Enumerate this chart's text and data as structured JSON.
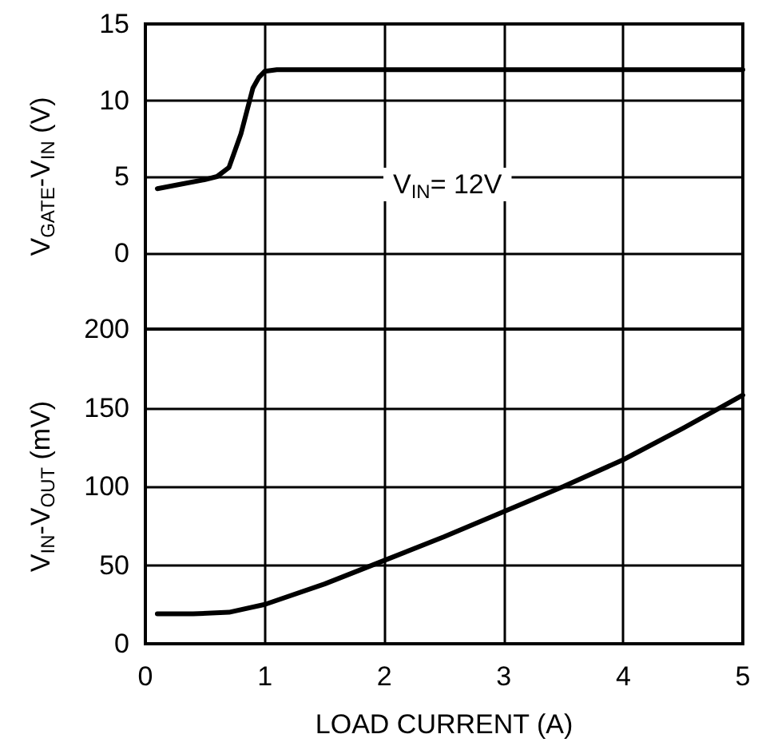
{
  "chart_data": [
    {
      "type": "line",
      "ylabel": "V$_{GATE}$-V$_{IN}$ (V)",
      "annotations": [
        "V$_{IN}$= 12V"
      ],
      "x": [
        0.1,
        0.3,
        0.5,
        0.6,
        0.7,
        0.8,
        0.9,
        0.95,
        1.0,
        1.1,
        1.5,
        2,
        3,
        4,
        5
      ],
      "series": [
        {
          "color": "#000000",
          "values": [
            4.2,
            4.5,
            4.8,
            5.0,
            5.6,
            7.8,
            10.8,
            11.5,
            11.9,
            12.0,
            12.0,
            12.0,
            12.0,
            12.0,
            12.0
          ]
        }
      ],
      "xlim": [
        0,
        5
      ],
      "xticks": [
        0,
        1,
        2,
        3,
        4,
        5
      ],
      "ylim": [
        -5,
        15
      ],
      "yticks": [
        0,
        5,
        10,
        15
      ],
      "tick_labels": "y",
      "grid": true,
      "marker": "none",
      "line_style": "solid"
    },
    {
      "type": "line",
      "xlabel": "LOAD CURRENT (A)",
      "ylabel": "V$_{IN}$-V$_{OUT}$ (mV)",
      "x": [
        0.1,
        0.4,
        0.7,
        1.0,
        1.5,
        2,
        2.5,
        3,
        3.5,
        4,
        4.5,
        5
      ],
      "series": [
        {
          "color": "#000000",
          "values": [
            19,
            19,
            20,
            25,
            38,
            53,
            68,
            84,
            100,
            117,
            137,
            158
          ]
        }
      ],
      "xlim": [
        0,
        5
      ],
      "xticks": [
        0,
        1,
        2,
        3,
        4,
        5
      ],
      "ylim": [
        0,
        200
      ],
      "yticks": [
        0,
        50,
        100,
        150,
        200
      ],
      "grid": true,
      "marker": "none",
      "line_style": "solid"
    }
  ]
}
